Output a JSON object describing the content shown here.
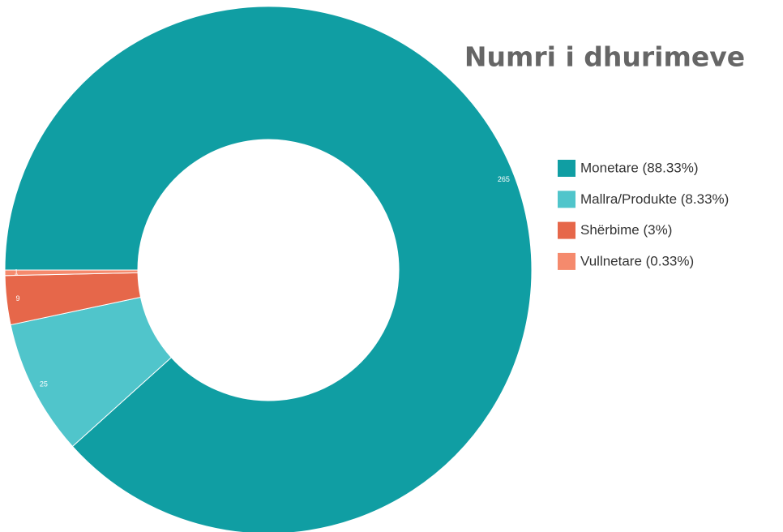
{
  "chart_data": {
    "type": "donut",
    "title": "Numri i dhurimeve",
    "categories": [
      "Monetare (88.33%)",
      "Mallra/Produkte (8.33%)",
      "Shërbime (3%)",
      "Vullnetare (0.33%)"
    ],
    "values": [
      265,
      25,
      9,
      1
    ],
    "colors": [
      "#109ea3",
      "#50c5cb",
      "#e6674a",
      "#f58a6d"
    ],
    "legend": "right"
  }
}
